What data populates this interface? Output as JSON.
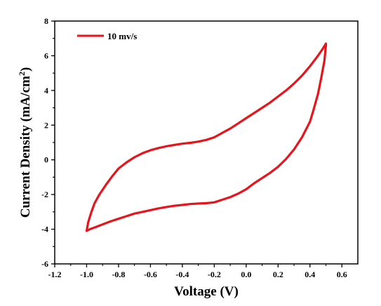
{
  "chart_data": {
    "type": "line",
    "xlabel": "Voltage (V)",
    "ylabel": "Current Density (mA/cm",
    "ylabel_superscript": "2",
    "ylabel_suffix": ")",
    "xlim": [
      -1.2,
      0.7
    ],
    "ylim": [
      -6,
      8
    ],
    "xticks": [
      -1.2,
      -1.0,
      -0.8,
      -0.6,
      -0.4,
      -0.2,
      0.0,
      0.2,
      0.4,
      0.6
    ],
    "xtick_labels": [
      "-1.2",
      "-1.0",
      "-0.8",
      "-0.6",
      "-0.4",
      "-0.2",
      "0.0",
      "0.2",
      "0.4",
      "0.6"
    ],
    "yticks": [
      -6,
      -4,
      -2,
      0,
      2,
      4,
      6,
      8
    ],
    "ytick_labels": [
      "-6",
      "-4",
      "-2",
      "0",
      "2",
      "4",
      "6",
      "8"
    ],
    "legend_position": "top-left",
    "series": [
      {
        "name": "10 mv/s",
        "color": "#e8141c",
        "x": [
          -1.0,
          -0.99,
          -0.97,
          -0.95,
          -0.92,
          -0.88,
          -0.84,
          -0.8,
          -0.75,
          -0.7,
          -0.65,
          -0.6,
          -0.55,
          -0.5,
          -0.45,
          -0.4,
          -0.35,
          -0.3,
          -0.25,
          -0.2,
          -0.15,
          -0.1,
          -0.05,
          0.0,
          0.05,
          0.1,
          0.15,
          0.2,
          0.25,
          0.3,
          0.35,
          0.4,
          0.45,
          0.48,
          0.5,
          0.5,
          0.49,
          0.47,
          0.45,
          0.42,
          0.4,
          0.35,
          0.3,
          0.25,
          0.2,
          0.15,
          0.1,
          0.05,
          0.0,
          -0.05,
          -0.1,
          -0.15,
          -0.2,
          -0.25,
          -0.3,
          -0.35,
          -0.4,
          -0.45,
          -0.5,
          -0.55,
          -0.6,
          -0.65,
          -0.7,
          -0.75,
          -0.8,
          -0.85,
          -0.9,
          -0.95,
          -0.98,
          -1.0
        ],
        "y": [
          -4.1,
          -3.6,
          -3.0,
          -2.5,
          -2.0,
          -1.45,
          -0.95,
          -0.5,
          -0.15,
          0.15,
          0.38,
          0.55,
          0.68,
          0.78,
          0.86,
          0.93,
          0.98,
          1.05,
          1.15,
          1.3,
          1.55,
          1.8,
          2.1,
          2.4,
          2.7,
          3.0,
          3.3,
          3.65,
          4.0,
          4.4,
          4.85,
          5.4,
          6.0,
          6.4,
          6.7,
          6.6,
          5.7,
          4.7,
          3.8,
          2.8,
          2.2,
          1.3,
          0.6,
          0.05,
          -0.4,
          -0.75,
          -1.05,
          -1.35,
          -1.7,
          -1.95,
          -2.15,
          -2.3,
          -2.45,
          -2.5,
          -2.52,
          -2.55,
          -2.6,
          -2.65,
          -2.72,
          -2.8,
          -2.9,
          -3.0,
          -3.1,
          -3.25,
          -3.4,
          -3.55,
          -3.72,
          -3.9,
          -4.0,
          -4.1
        ]
      }
    ]
  }
}
